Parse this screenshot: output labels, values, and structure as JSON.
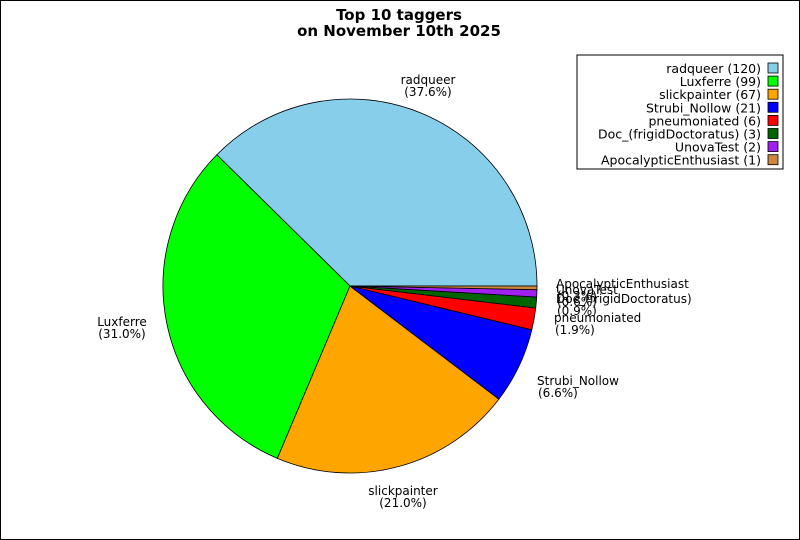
{
  "chart_data": {
    "type": "pie",
    "title_line1": "Top 10 taggers",
    "title_line2": "on November 10th 2025",
    "legend_position": "top-right",
    "slices": [
      {
        "name": "radqueer",
        "value": 120,
        "percent_label": "(37.6%)",
        "legend_label": "radqueer (120)",
        "color": "#87ceeb"
      },
      {
        "name": "Luxferre",
        "value": 99,
        "percent_label": "(31.0%)",
        "legend_label": "Luxferre (99)",
        "color": "#00ff00"
      },
      {
        "name": "slickpainter",
        "value": 67,
        "percent_label": "(21.0%)",
        "legend_label": "slickpainter (67)",
        "color": "#ffa500"
      },
      {
        "name": "Strubi_Nollow",
        "value": 21,
        "percent_label": "(6.6%)",
        "legend_label": "Strubi_Nollow (21)",
        "color": "#0000ff"
      },
      {
        "name": "pneumoniated",
        "value": 6,
        "percent_label": "(1.9%)",
        "legend_label": "pneumoniated (6)",
        "color": "#ff0000"
      },
      {
        "name": "Doc_(frigidDoctoratus)",
        "value": 3,
        "percent_label": "(0.9%)",
        "legend_label": "Doc_(frigidDoctoratus) (3)",
        "color": "#006400"
      },
      {
        "name": "UnovaTest",
        "value": 2,
        "percent_label": "(0.6%)",
        "legend_label": "UnovaTest (2)",
        "color": "#a020f0"
      },
      {
        "name": "ApocalypticEnthusiast",
        "value": 1,
        "percent_label": "(0.3%)",
        "legend_label": "ApocalypticEnthusiast (1)",
        "color": "#cd853f"
      }
    ]
  }
}
